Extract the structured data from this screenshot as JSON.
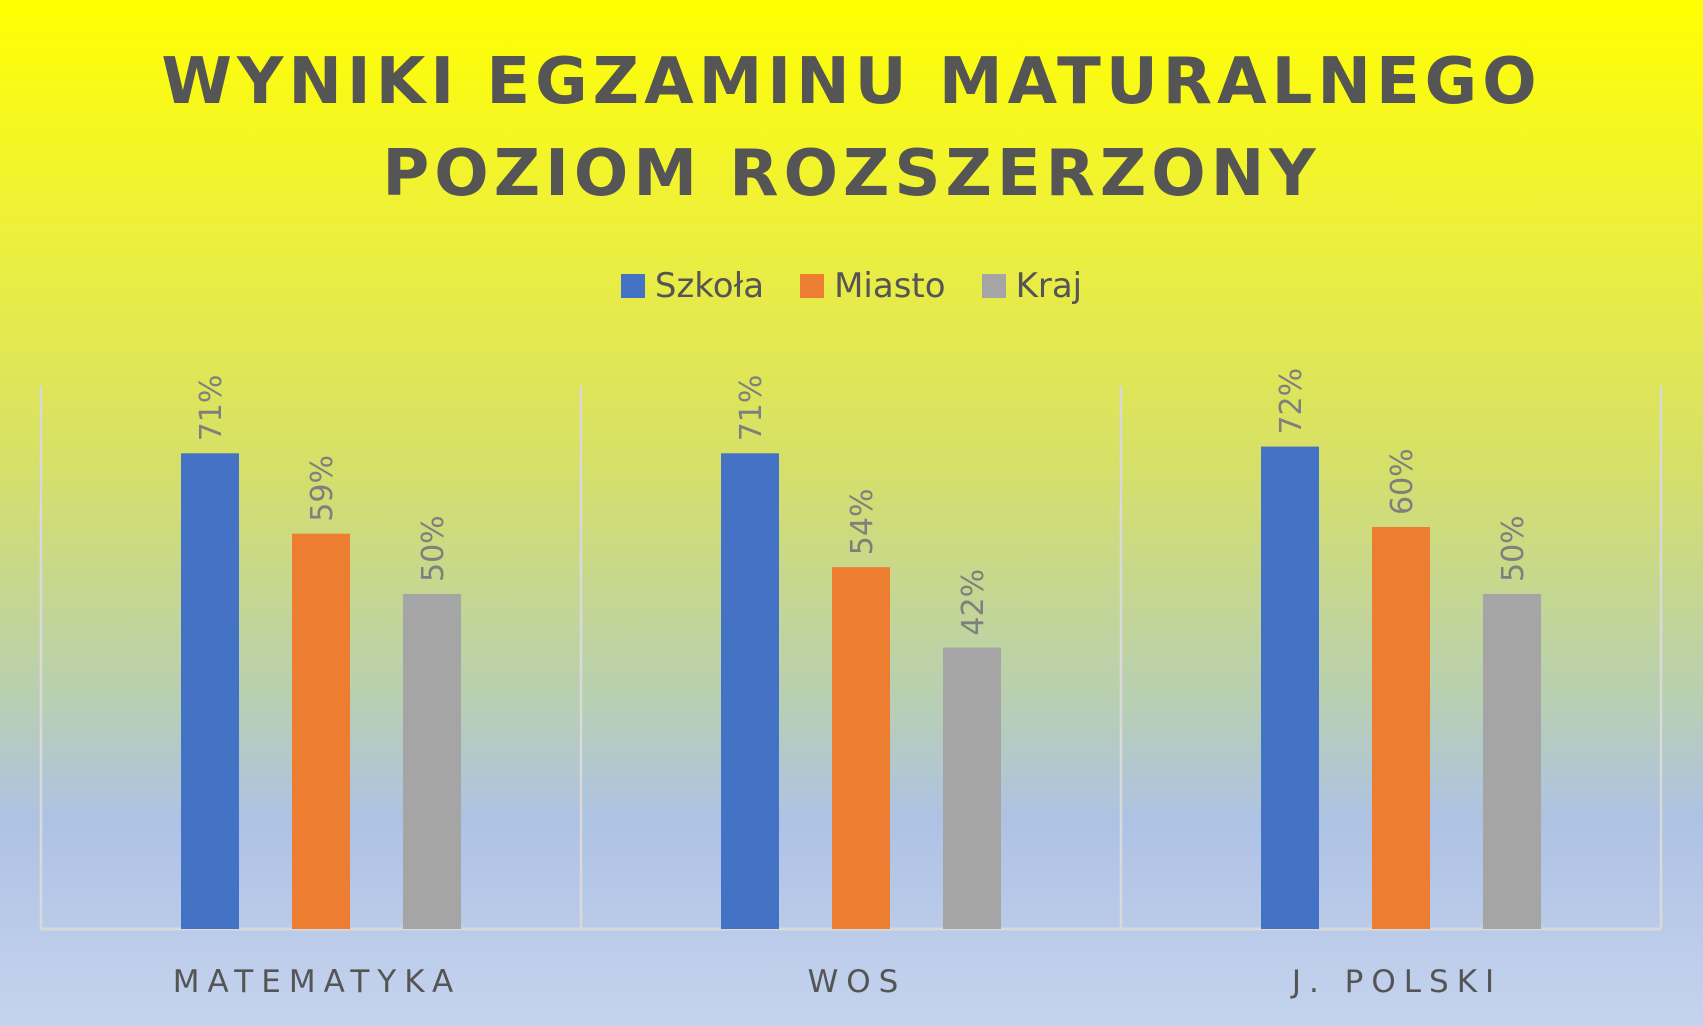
{
  "chart_data": {
    "type": "bar",
    "title_lines": [
      "WYNIKI EGZAMINU MATURALNEGO",
      "POZIOM ROZSZERZONY"
    ],
    "categories": [
      "MATEMATYKA",
      "WOS",
      "J. POLSKI"
    ],
    "series": [
      {
        "name": "Szkoła",
        "color": "#4472c4",
        "values": [
          71,
          71,
          72
        ],
        "labels": [
          "71%",
          "71%",
          "72%"
        ]
      },
      {
        "name": "Miasto",
        "color": "#ed7d31",
        "values": [
          59,
          54,
          60
        ],
        "labels": [
          "59%",
          "54%",
          "60%"
        ]
      },
      {
        "name": "Kraj",
        "color": "#a5a5a5",
        "values": [
          50,
          42,
          50
        ],
        "labels": [
          "50%",
          "42%",
          "50%"
        ]
      }
    ],
    "ylim": [
      0,
      80
    ],
    "grid": false,
    "legend_position": "top",
    "background": "gradient yellow to light blue"
  }
}
